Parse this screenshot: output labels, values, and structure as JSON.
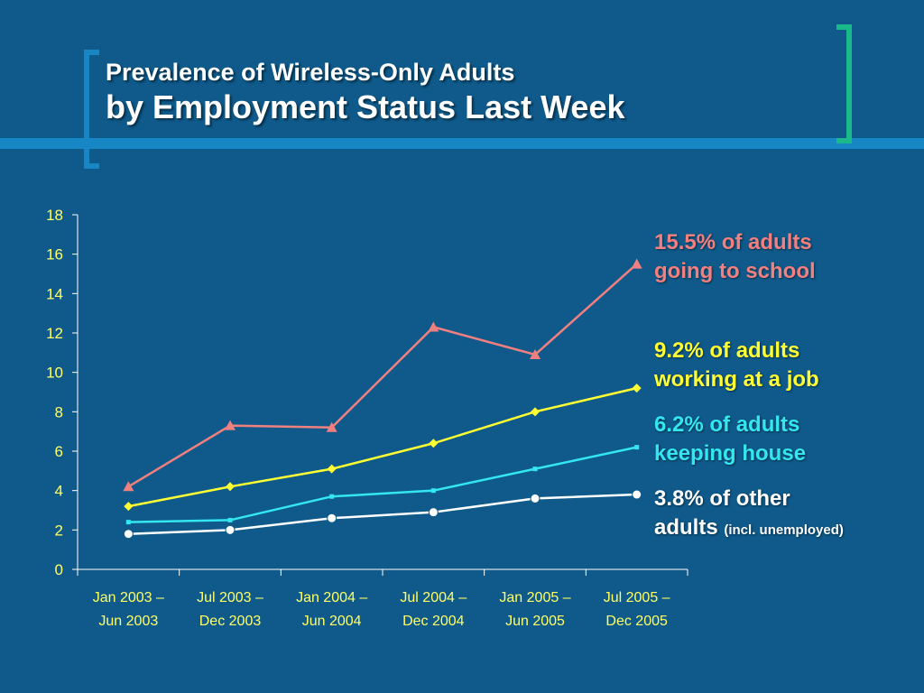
{
  "title": {
    "line1": "Prevalence of Wireless-Only Adults",
    "line2": "by Employment Status Last Week"
  },
  "colors": {
    "background": "#0f5a8a",
    "accent_bar": "#1686c4",
    "bracket_left": "#1686c4",
    "bracket_right": "#19b98a",
    "axis_text": "#ffff66"
  },
  "chart_data": {
    "type": "line",
    "categories": [
      [
        "Jan 2003 –",
        "Jun 2003"
      ],
      [
        "Jul 2003 –",
        "Dec 2003"
      ],
      [
        "Jan 2004 –",
        "Jun 2004"
      ],
      [
        "Jul 2004 –",
        "Dec 2004"
      ],
      [
        "Jan 2005 –",
        "Jun 2005"
      ],
      [
        "Jul 2005 –",
        "Dec 2005"
      ]
    ],
    "ylim": [
      0,
      18
    ],
    "yticks": [
      "0",
      "2",
      "4",
      "6",
      "8",
      "10",
      "12",
      "14",
      "16",
      "18"
    ],
    "grid": false,
    "series": [
      {
        "values": [
          4.2,
          7.3,
          7.2,
          12.3,
          10.9,
          15.5
        ],
        "color": "#f08080",
        "marker": "triangle"
      },
      {
        "values": [
          3.2,
          4.2,
          5.1,
          6.4,
          8.0,
          9.2
        ],
        "color": "#ffff33",
        "marker": "diamond"
      },
      {
        "values": [
          2.4,
          2.5,
          3.7,
          4.0,
          5.1,
          6.2
        ],
        "color": "#33e6f0",
        "marker": "square"
      },
      {
        "values": [
          1.8,
          2.0,
          2.6,
          2.9,
          3.6,
          3.8
        ],
        "color": "#ffffff",
        "marker": "circle"
      }
    ],
    "annotations": [
      {
        "line1": "15.5% of adults",
        "line2": "going to school",
        "color": "#f47f7f"
      },
      {
        "line1": "9.2% of adults",
        "line2": "working at a job",
        "color": "#ffff33"
      },
      {
        "line1": "6.2% of adults",
        "line2": "keeping house",
        "color": "#33e6f0"
      },
      {
        "line1": "3.8% of other",
        "line2": "adults",
        "small": "(incl. unemployed)",
        "color": "#ffffff"
      }
    ]
  }
}
